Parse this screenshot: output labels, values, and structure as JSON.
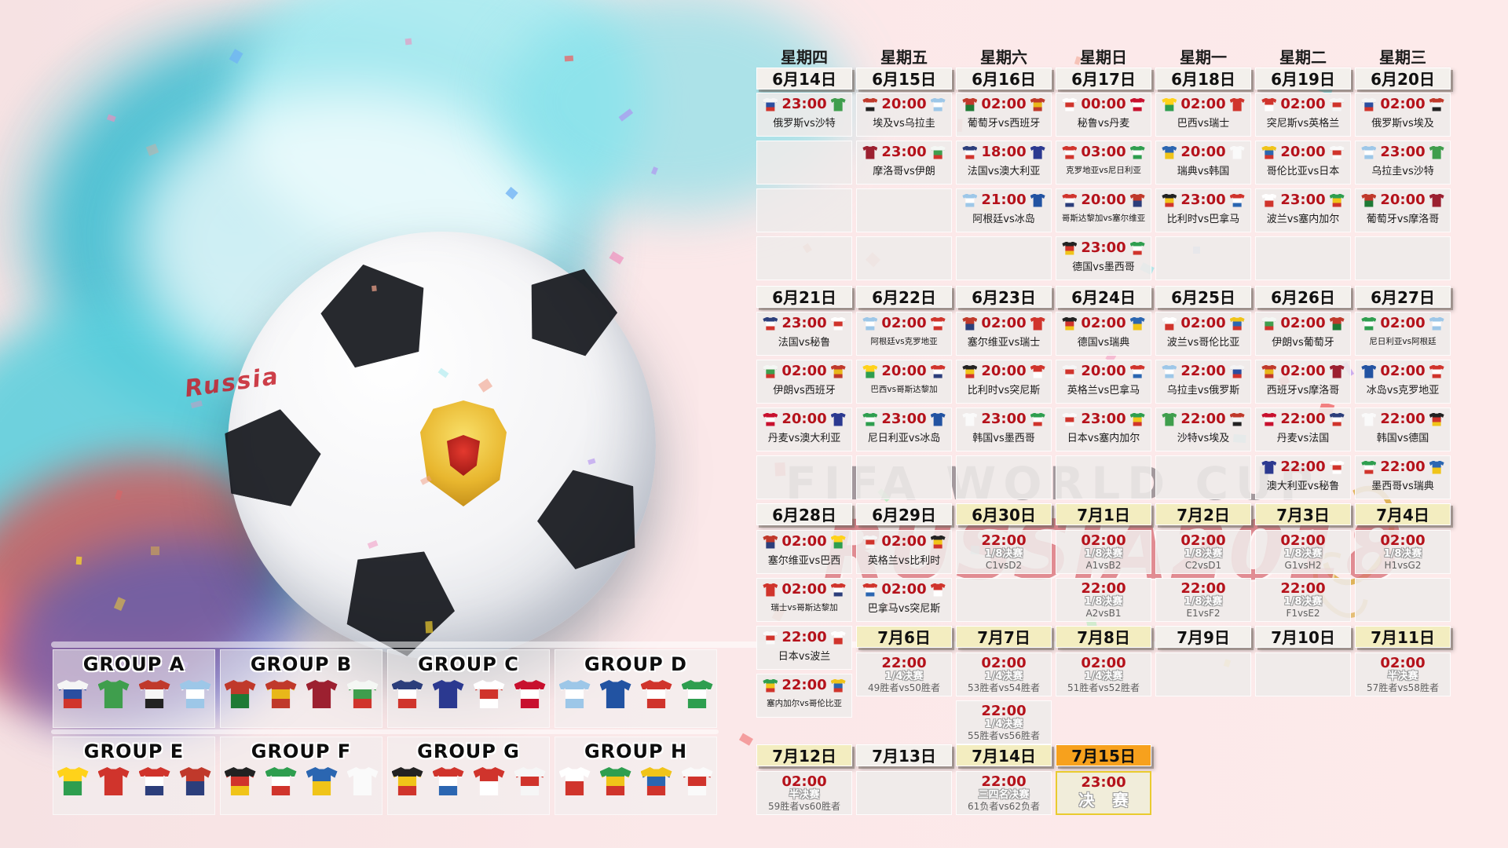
{
  "watermarks": {
    "fifa": "FIFA WORLD CUP",
    "russia": "RUSSIA2018",
    "ball_text": "Russia"
  },
  "colors": {
    "time_red": "#b5121b",
    "date_plain": "#f3f0ec",
    "date_beige": "#f3edc0",
    "date_orange": "#f7a11d",
    "final_border": "#e9cb2f"
  },
  "team_colors": {
    "俄罗斯": [
      "#f5f5f5",
      "#2b4ea0",
      "#d0342c"
    ],
    "沙特": [
      "#3f9e4d"
    ],
    "埃及": [
      "#c0392b",
      "#f5f5f5",
      "#222222"
    ],
    "乌拉圭": [
      "#9dc7e8",
      "#ffffff",
      "#9dc7e8"
    ],
    "葡萄牙": [
      "#c0392b",
      "#1e7a35"
    ],
    "西班牙": [
      "#c0392b",
      "#e8b71a",
      "#c0392b"
    ],
    "摩洛哥": [
      "#9c2030"
    ],
    "伊朗": [
      "#f4f7f4",
      "#3f9e4d",
      "#d0342c"
    ],
    "法国": [
      "#2c3e7b",
      "#ffffff",
      "#d0342c"
    ],
    "澳大利亚": [
      "#2b3990"
    ],
    "秘鲁": [
      "#ffffff",
      "#d0342c",
      "#ffffff"
    ],
    "丹麦": [
      "#c8102e",
      "#ffffff",
      "#c8102e"
    ],
    "克罗地亚": [
      "#d0342c",
      "#ffffff",
      "#d0342c"
    ],
    "尼日利亚": [
      "#2e9e4f",
      "#ffffff",
      "#2e9e4f"
    ],
    "巴西": [
      "#ffd21a",
      "#2e9e4f"
    ],
    "瑞士": [
      "#d0342c"
    ],
    "瑞典": [
      "#2b66b1",
      "#f0c419"
    ],
    "韩国": [
      "#fafafa"
    ],
    "突尼斯": [
      "#d0342c",
      "#ffffff"
    ],
    "英格兰": [
      "#f6f6f6",
      "#d0342c",
      "#f6f6f6"
    ],
    "哥伦比亚": [
      "#f0c419",
      "#2b66b1",
      "#d0342c"
    ],
    "日本": [
      "#fafafa",
      "#d0342c",
      "#fafafa"
    ],
    "阿根廷": [
      "#9dc7e8",
      "#ffffff",
      "#9dc7e8"
    ],
    "冰岛": [
      "#2253a2"
    ],
    "哥斯达黎加": [
      "#d0342c",
      "#ffffff",
      "#2c3e7b"
    ],
    "塞尔维亚": [
      "#c0392b",
      "#2c3e7b"
    ],
    "德国": [
      "#222222",
      "#d0342c",
      "#f0c419"
    ],
    "墨西哥": [
      "#2e9e4f",
      "#ffffff",
      "#d0342c"
    ],
    "比利时": [
      "#222222",
      "#f0c419",
      "#d0342c"
    ],
    "巴拿马": [
      "#d0342c",
      "#ffffff",
      "#2b66b1"
    ],
    "波兰": [
      "#ffffff",
      "#d0342c"
    ],
    "塞内加尔": [
      "#2e9e4f",
      "#f0c419",
      "#d0342c"
    ]
  },
  "calendar": {
    "weekdays": [
      "星期四",
      "星期五",
      "星期六",
      "星期日",
      "星期一",
      "星期二",
      "星期三"
    ],
    "weeks": [
      {
        "dates": [
          {
            "t": "6月14日",
            "v": "p"
          },
          {
            "t": "6月15日",
            "v": "p"
          },
          {
            "t": "6月16日",
            "v": "p"
          },
          {
            "t": "6月17日",
            "v": "p"
          },
          {
            "t": "6月18日",
            "v": "p"
          },
          {
            "t": "6月19日",
            "v": "p"
          },
          {
            "t": "6月20日",
            "v": "p"
          }
        ],
        "rows": [
          [
            {
              "time": "23:00",
              "teams": "俄罗斯vs沙特"
            },
            {
              "time": "20:00",
              "teams": "埃及vs乌拉圭"
            },
            {
              "time": "02:00",
              "teams": "葡萄牙vs西班牙"
            },
            {
              "time": "00:00",
              "teams": "秘鲁vs丹麦"
            },
            {
              "time": "02:00",
              "teams": "巴西vs瑞士"
            },
            {
              "time": "02:00",
              "teams": "突尼斯vs英格兰"
            },
            {
              "time": "02:00",
              "teams": "俄罗斯vs埃及"
            }
          ],
          [
            {},
            {
              "time": "23:00",
              "teams": "摩洛哥vs伊朗"
            },
            {
              "time": "18:00",
              "teams": "法国vs澳大利亚"
            },
            {
              "time": "03:00",
              "teams": "克罗地亚vs尼日利亚"
            },
            {
              "time": "20:00",
              "teams": "瑞典vs韩国"
            },
            {
              "time": "20:00",
              "teams": "哥伦比亚vs日本"
            },
            {
              "time": "23:00",
              "teams": "乌拉圭vs沙特"
            }
          ],
          [
            {},
            {},
            {
              "time": "21:00",
              "teams": "阿根廷vs冰岛"
            },
            {
              "time": "20:00",
              "teams": "哥斯达黎加vs塞尔维亚"
            },
            {
              "time": "23:00",
              "teams": "比利时vs巴拿马"
            },
            {
              "time": "23:00",
              "teams": "波兰vs塞内加尔"
            },
            {
              "time": "20:00",
              "teams": "葡萄牙vs摩洛哥"
            }
          ],
          [
            {},
            {},
            {},
            {
              "time": "23:00",
              "teams": "德国vs墨西哥"
            },
            {},
            {},
            {}
          ]
        ]
      },
      {
        "dates": [
          {
            "t": "6月21日",
            "v": "p"
          },
          {
            "t": "6月22日",
            "v": "p"
          },
          {
            "t": "6月23日",
            "v": "p"
          },
          {
            "t": "6月24日",
            "v": "p"
          },
          {
            "t": "6月25日",
            "v": "p"
          },
          {
            "t": "6月26日",
            "v": "p"
          },
          {
            "t": "6月27日",
            "v": "p"
          }
        ],
        "rows": [
          [
            {
              "time": "23:00",
              "teams": "法国vs秘鲁"
            },
            {
              "time": "02:00",
              "teams": "阿根廷vs克罗地亚"
            },
            {
              "time": "02:00",
              "teams": "塞尔维亚vs瑞士"
            },
            {
              "time": "02:00",
              "teams": "德国vs瑞典"
            },
            {
              "time": "02:00",
              "teams": "波兰vs哥伦比亚"
            },
            {
              "time": "02:00",
              "teams": "伊朗vs葡萄牙"
            },
            {
              "time": "02:00",
              "teams": "尼日利亚vs阿根廷"
            }
          ],
          [
            {
              "time": "02:00",
              "teams": "伊朗vs西班牙"
            },
            {
              "time": "20:00",
              "teams": "巴西vs哥斯达黎加"
            },
            {
              "time": "20:00",
              "teams": "比利时vs突尼斯"
            },
            {
              "time": "20:00",
              "teams": "英格兰vs巴拿马"
            },
            {
              "time": "22:00",
              "teams": "乌拉圭vs俄罗斯"
            },
            {
              "time": "02:00",
              "teams": "西班牙vs摩洛哥"
            },
            {
              "time": "02:00",
              "teams": "冰岛vs克罗地亚"
            }
          ],
          [
            {
              "time": "20:00",
              "teams": "丹麦vs澳大利亚"
            },
            {
              "time": "23:00",
              "teams": "尼日利亚vs冰岛"
            },
            {
              "time": "23:00",
              "teams": "韩国vs墨西哥"
            },
            {
              "time": "23:00",
              "teams": "日本vs塞内加尔"
            },
            {
              "time": "22:00",
              "teams": "沙特vs埃及"
            },
            {
              "time": "22:00",
              "teams": "丹麦vs法国"
            },
            {
              "time": "22:00",
              "teams": "韩国vs德国"
            }
          ],
          [
            {},
            {},
            {},
            {},
            {},
            {
              "time": "22:00",
              "teams": "澳大利亚vs秘鲁"
            },
            {
              "time": "22:00",
              "teams": "墨西哥vs瑞典"
            }
          ]
        ]
      },
      {
        "dates": [
          {
            "t": "6月28日",
            "v": "p"
          },
          {
            "t": "6月29日",
            "v": "p"
          },
          {
            "t": "6月30日",
            "v": "b"
          },
          {
            "t": "7月1日",
            "v": "b"
          },
          {
            "t": "7月2日",
            "v": "b"
          },
          {
            "t": "7月3日",
            "v": "b"
          },
          {
            "t": "7月4日",
            "v": "b"
          }
        ],
        "rows": [
          [
            {
              "time": "02:00",
              "teams": "塞尔维亚vs巴西"
            },
            {
              "time": "02:00",
              "teams": "英格兰vs比利时"
            },
            {
              "time": "22:00",
              "stage": "1/8决赛",
              "pair": "C1vsD2"
            },
            {
              "time": "02:00",
              "stage": "1/8决赛",
              "pair": "A1vsB2"
            },
            {
              "time": "02:00",
              "stage": "1/8决赛",
              "pair": "C2vsD1"
            },
            {
              "time": "02:00",
              "stage": "1/8决赛",
              "pair": "G1vsH2"
            },
            {
              "time": "02:00",
              "stage": "1/8决赛",
              "pair": "H1vsG2"
            }
          ],
          [
            {
              "time": "02:00",
              "teams": "瑞士vs哥斯达黎加"
            },
            {
              "time": "02:00",
              "teams": "巴拿马vs突尼斯"
            },
            {},
            {
              "time": "22:00",
              "stage": "1/8决赛",
              "pair": "A2vsB1"
            },
            {
              "time": "22:00",
              "stage": "1/8决赛",
              "pair": "E1vsF2"
            },
            {
              "time": "22:00",
              "stage": "1/8决赛",
              "pair": "F1vsE2"
            },
            {}
          ]
        ]
      }
    ],
    "thu_extra": [
      {
        "time": "22:00",
        "teams": "日本vs波兰"
      },
      {
        "time": "22:00",
        "teams": "塞内加尔vs哥伦比亚"
      }
    ],
    "week4": {
      "dates": [
        null,
        {
          "t": "7月6日",
          "v": "b"
        },
        {
          "t": "7月7日",
          "v": "b"
        },
        {
          "t": "7月8日",
          "v": "b"
        },
        {
          "t": "7月9日",
          "v": "p"
        },
        {
          "t": "7月10日",
          "v": "p"
        },
        {
          "t": "7月11日",
          "v": "b"
        }
      ],
      "row": [
        null,
        {
          "time": "22:00",
          "stage": "1/4决赛",
          "pair": "49胜者vs50胜者"
        },
        {
          "time": "02:00",
          "stage": "1/4决赛",
          "pair": "53胜者vs54胜者"
        },
        {
          "time": "02:00",
          "stage": "1/4决赛",
          "pair": "51胜者vs52胜者"
        },
        {},
        {},
        {
          "time": "02:00",
          "stage": "半决赛",
          "pair": "57胜者vs58胜者"
        }
      ],
      "row2_sat": {
        "time": "22:00",
        "stage": "1/4决赛",
        "pair": "55胜者vs56胜者"
      }
    },
    "week5": {
      "dates": [
        {
          "t": "7月12日",
          "v": "b"
        },
        {
          "t": "7月13日",
          "v": "p"
        },
        {
          "t": "7月14日",
          "v": "b"
        },
        {
          "t": "7月15日",
          "v": "o"
        }
      ],
      "row": [
        {
          "time": "02:00",
          "stage": "半决赛",
          "pair": "59胜者vs60胜者"
        },
        {},
        {
          "time": "22:00",
          "stage": "三四名决赛",
          "pair": "61负者vs62负者"
        },
        {
          "time": "23:00",
          "stage": "决 赛",
          "final": true
        }
      ]
    }
  },
  "groups": [
    {
      "label": "GROUP A",
      "teams": [
        "俄罗斯",
        "沙特",
        "埃及",
        "乌拉圭"
      ]
    },
    {
      "label": "GROUP B",
      "teams": [
        "葡萄牙",
        "西班牙",
        "摩洛哥",
        "伊朗"
      ]
    },
    {
      "label": "GROUP C",
      "teams": [
        "法国",
        "澳大利亚",
        "秘鲁",
        "丹麦"
      ]
    },
    {
      "label": "GROUP D",
      "teams": [
        "阿根廷",
        "冰岛",
        "克罗地亚",
        "尼日利亚"
      ]
    },
    {
      "label": "GROUP E",
      "teams": [
        "巴西",
        "瑞士",
        "哥斯达黎加",
        "塞尔维亚"
      ]
    },
    {
      "label": "GROUP F",
      "teams": [
        "德国",
        "墨西哥",
        "瑞典",
        "韩国"
      ]
    },
    {
      "label": "GROUP G",
      "teams": [
        "比利时",
        "巴拿马",
        "突尼斯",
        "英格兰"
      ]
    },
    {
      "label": "GROUP H",
      "teams": [
        "波兰",
        "塞内加尔",
        "哥伦比亚",
        "日本"
      ]
    }
  ]
}
